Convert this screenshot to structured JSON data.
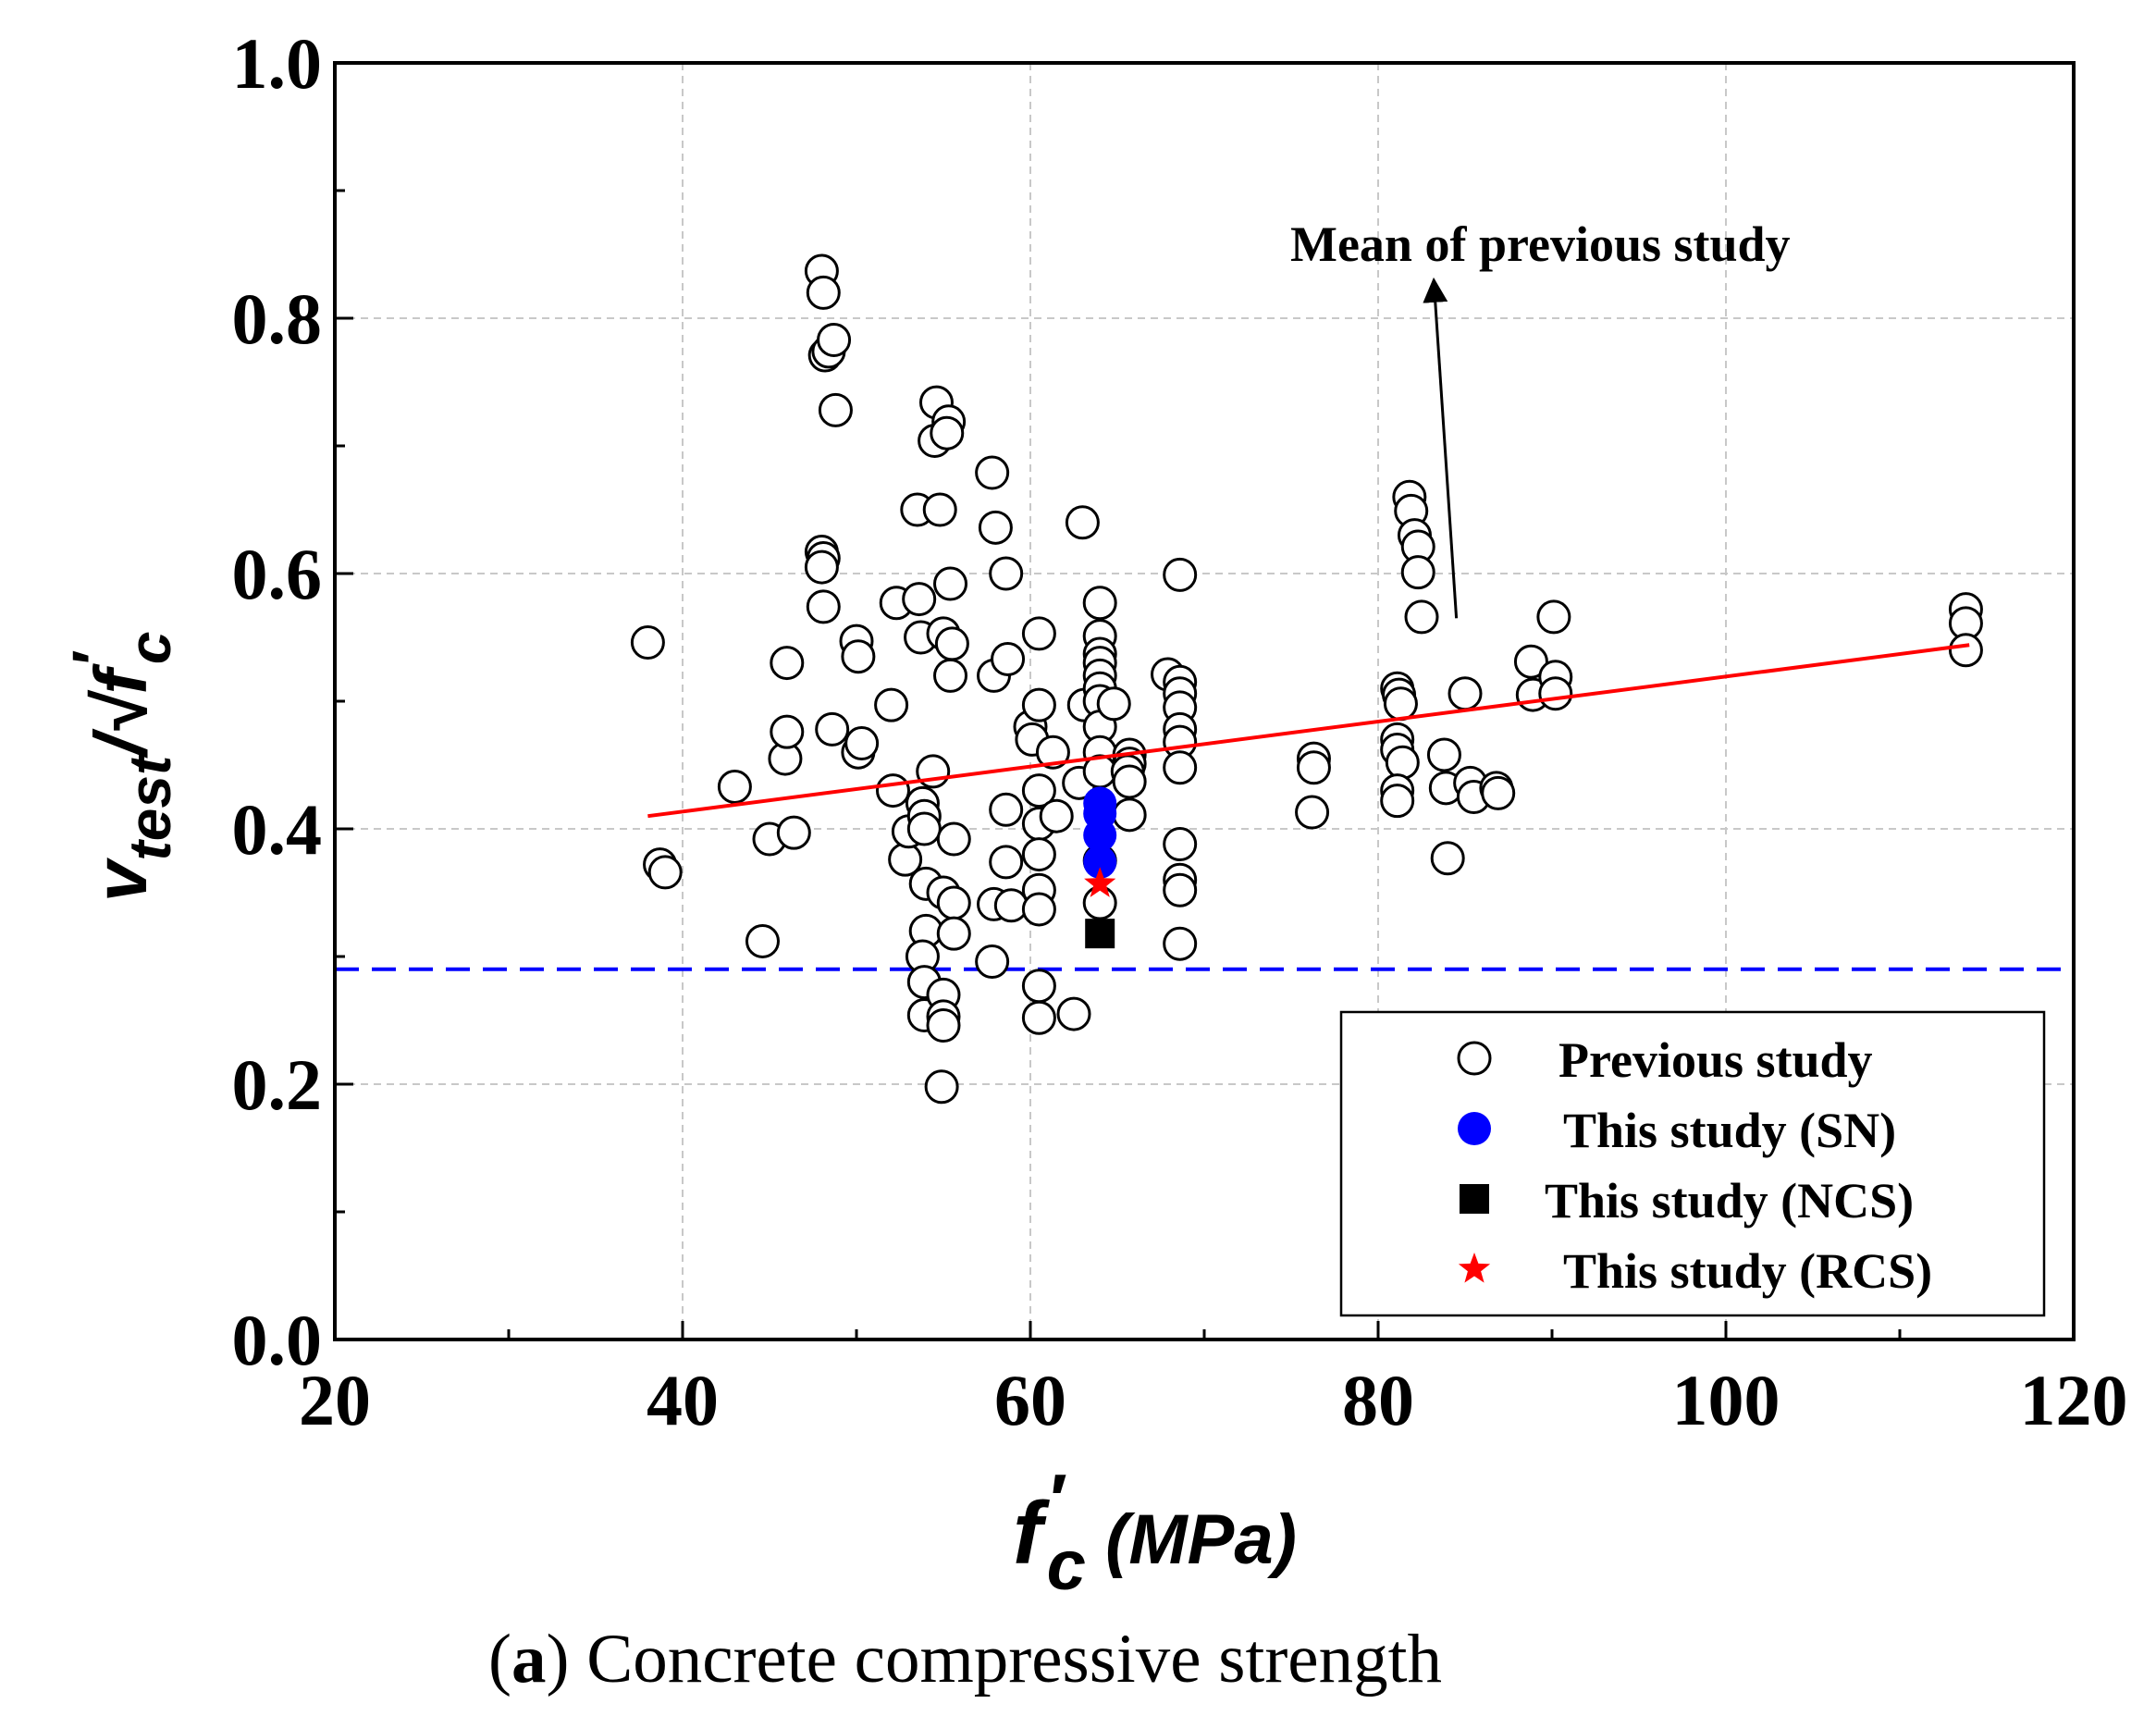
{
  "chart_data": {
    "type": "scatter",
    "xlim": [
      20,
      120
    ],
    "ylim": [
      0.0,
      1.0
    ],
    "grid": true,
    "legend_position": "bottom-right",
    "x_ticks": [
      20,
      40,
      60,
      80,
      100,
      120
    ],
    "y_ticks": [
      0.0,
      0.2,
      0.4,
      0.6,
      0.8,
      1.0
    ],
    "x_tick_labels": [
      "20",
      "40",
      "60",
      "80",
      "100",
      "120"
    ],
    "y_tick_labels": [
      "0.0",
      "0.2",
      "0.4",
      "0.6",
      "0.8",
      "1.0"
    ],
    "xlabel": {
      "main": "f",
      "prime": "′",
      "sub": "c",
      "rest": " (MPa)"
    },
    "ylabel": {
      "v": "v",
      "sub": "test",
      "slash": "/√",
      "f": "f",
      "prime": "′",
      "fsub": "c"
    },
    "series": [
      {
        "name": "Previous study",
        "marker": "open-circle",
        "color": "#000000",
        "points": [
          [
            38.0,
            0.546
          ],
          [
            38.7,
            0.372
          ],
          [
            39.0,
            0.366
          ],
          [
            43.0,
            0.433
          ],
          [
            44.6,
            0.312
          ],
          [
            45.0,
            0.392
          ],
          [
            45.9,
            0.455
          ],
          [
            46.0,
            0.476
          ],
          [
            46.0,
            0.53
          ],
          [
            46.4,
            0.397
          ],
          [
            48.0,
            0.837
          ],
          [
            48.1,
            0.82
          ],
          [
            48.2,
            0.771
          ],
          [
            48.4,
            0.774
          ],
          [
            48.7,
            0.783
          ],
          [
            48.8,
            0.728
          ],
          [
            48.0,
            0.617
          ],
          [
            48.1,
            0.612
          ],
          [
            48.0,
            0.605
          ],
          [
            48.1,
            0.574
          ],
          [
            48.6,
            0.478
          ],
          [
            50.0,
            0.547
          ],
          [
            50.1,
            0.535
          ],
          [
            50.1,
            0.46
          ],
          [
            50.3,
            0.467
          ],
          [
            52.0,
            0.497
          ],
          [
            52.1,
            0.43
          ],
          [
            52.3,
            0.577
          ],
          [
            52.8,
            0.376
          ],
          [
            53.0,
            0.398
          ],
          [
            53.5,
            0.65
          ],
          [
            53.6,
            0.58
          ],
          [
            53.7,
            0.55
          ],
          [
            53.8,
            0.42
          ],
          [
            53.9,
            0.41
          ],
          [
            53.9,
            0.4
          ],
          [
            54.0,
            0.357
          ],
          [
            54.0,
            0.32
          ],
          [
            53.8,
            0.3
          ],
          [
            53.9,
            0.28
          ],
          [
            53.9,
            0.254
          ],
          [
            54.4,
            0.445
          ],
          [
            54.6,
            0.734
          ],
          [
            54.5,
            0.704
          ],
          [
            54.8,
            0.65
          ],
          [
            55.0,
            0.553
          ],
          [
            55.0,
            0.35
          ],
          [
            55.0,
            0.27
          ],
          [
            55.0,
            0.253
          ],
          [
            55.0,
            0.246
          ],
          [
            54.9,
            0.198
          ],
          [
            55.3,
            0.719
          ],
          [
            55.2,
            0.71
          ],
          [
            55.4,
            0.592
          ],
          [
            55.5,
            0.545
          ],
          [
            55.4,
            0.52
          ],
          [
            55.6,
            0.392
          ],
          [
            55.6,
            0.342
          ],
          [
            55.6,
            0.318
          ],
          [
            57.8,
            0.679
          ],
          [
            58.0,
            0.636
          ],
          [
            57.9,
            0.52
          ],
          [
            57.9,
            0.341
          ],
          [
            57.8,
            0.296
          ],
          [
            58.6,
            0.6
          ],
          [
            58.7,
            0.533
          ],
          [
            58.6,
            0.415
          ],
          [
            58.6,
            0.374
          ],
          [
            58.9,
            0.34
          ],
          [
            60.0,
            0.48
          ],
          [
            60.1,
            0.47
          ],
          [
            60.5,
            0.553
          ],
          [
            60.5,
            0.497
          ],
          [
            60.5,
            0.43
          ],
          [
            60.5,
            0.404
          ],
          [
            60.5,
            0.38
          ],
          [
            60.5,
            0.352
          ],
          [
            60.5,
            0.337
          ],
          [
            60.5,
            0.277
          ],
          [
            60.5,
            0.252
          ],
          [
            61.3,
            0.46
          ],
          [
            61.5,
            0.41
          ],
          [
            62.5,
            0.255
          ],
          [
            62.8,
            0.436
          ],
          [
            63.0,
            0.64
          ],
          [
            63.1,
            0.497
          ],
          [
            64.0,
            0.577
          ],
          [
            64.0,
            0.551
          ],
          [
            64.0,
            0.537
          ],
          [
            64.0,
            0.53
          ],
          [
            64.0,
            0.52
          ],
          [
            64.0,
            0.51
          ],
          [
            64.0,
            0.5
          ],
          [
            64.0,
            0.48
          ],
          [
            64.0,
            0.46
          ],
          [
            64.0,
            0.445
          ],
          [
            64.0,
            0.375
          ],
          [
            64.0,
            0.342
          ],
          [
            64.8,
            0.498
          ],
          [
            65.7,
            0.458
          ],
          [
            65.7,
            0.451
          ],
          [
            65.6,
            0.445
          ],
          [
            65.7,
            0.437
          ],
          [
            65.7,
            0.411
          ],
          [
            67.9,
            0.521
          ],
          [
            68.6,
            0.599
          ],
          [
            68.6,
            0.515
          ],
          [
            68.6,
            0.506
          ],
          [
            68.6,
            0.495
          ],
          [
            68.6,
            0.478
          ],
          [
            68.6,
            0.468
          ],
          [
            68.6,
            0.448
          ],
          [
            68.6,
            0.388
          ],
          [
            68.6,
            0.36
          ],
          [
            68.6,
            0.352
          ],
          [
            68.6,
            0.31
          ],
          [
            76.3,
            0.455
          ],
          [
            76.3,
            0.448
          ],
          [
            76.2,
            0.413
          ],
          [
            81.1,
            0.51
          ],
          [
            81.2,
            0.505
          ],
          [
            81.3,
            0.498
          ],
          [
            81.1,
            0.47
          ],
          [
            81.1,
            0.462
          ],
          [
            81.4,
            0.452
          ],
          [
            81.1,
            0.43
          ],
          [
            81.1,
            0.422
          ],
          [
            81.8,
            0.66
          ],
          [
            81.9,
            0.649
          ],
          [
            82.1,
            0.63
          ],
          [
            82.3,
            0.621
          ],
          [
            82.3,
            0.601
          ],
          [
            82.5,
            0.566
          ],
          [
            83.8,
            0.458
          ],
          [
            83.9,
            0.432
          ],
          [
            84.0,
            0.377
          ],
          [
            85.0,
            0.506
          ],
          [
            85.3,
            0.436
          ],
          [
            85.5,
            0.425
          ],
          [
            86.8,
            0.432
          ],
          [
            86.9,
            0.428
          ],
          [
            88.8,
            0.531
          ],
          [
            88.9,
            0.505
          ],
          [
            90.1,
            0.566
          ],
          [
            90.2,
            0.519
          ],
          [
            90.2,
            0.506
          ],
          [
            113.8,
            0.572
          ],
          [
            113.8,
            0.561
          ],
          [
            113.8,
            0.54
          ]
        ]
      },
      {
        "name": "This study (SN)",
        "marker": "filled-circle",
        "color": "#0000ff",
        "points": [
          [
            64.0,
            0.42
          ],
          [
            64.0,
            0.412
          ],
          [
            64.0,
            0.395
          ],
          [
            64.0,
            0.374
          ]
        ]
      },
      {
        "name": "This study (NCS)",
        "marker": "filled-square",
        "color": "#000000",
        "points": [
          [
            64.0,
            0.318
          ]
        ]
      },
      {
        "name": "This study (RCS)",
        "marker": "star",
        "color": "#ff0000",
        "points": [
          [
            64.0,
            0.357
          ]
        ]
      }
    ],
    "lines": [
      {
        "kind": "trend",
        "color": "#ff0000",
        "points": [
          [
            38.0,
            0.41
          ],
          [
            114.0,
            0.544
          ]
        ]
      },
      {
        "kind": "horizontal-dashed",
        "color": "#0000ff",
        "y": 0.29
      }
    ],
    "annotation": {
      "text": "Mean of previous study",
      "arrow_from": [
        84.5,
        0.565
      ],
      "arrow_to": [
        83.2,
        0.83
      ]
    },
    "caption": {
      "label": "a",
      "text": " Concrete compressive strength"
    }
  }
}
